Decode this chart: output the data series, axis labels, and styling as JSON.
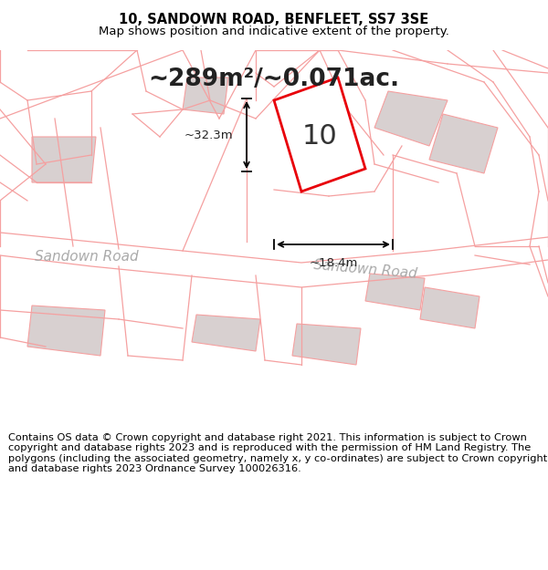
{
  "title": "10, SANDOWN ROAD, BENFLEET, SS7 3SE",
  "subtitle": "Map shows position and indicative extent of the property.",
  "area_text": "~289m²/~0.071ac.",
  "map_bg": "#f9f0f0",
  "map_border_color": "#cccccc",
  "footer_text": "Contains OS data © Crown copyright and database right 2021. This information is subject to Crown copyright and database rights 2023 and is reproduced with the permission of HM Land Registry. The polygons (including the associated geometry, namely x, y co-ordinates) are subject to Crown copyright and database rights 2023 Ordnance Survey 100026316.",
  "title_fontsize": 10.5,
  "subtitle_fontsize": 9.5,
  "area_fontsize": 19,
  "footer_fontsize": 8.2,
  "road_label_1": "Sandown Road",
  "road_label_2": "Sandown Road",
  "property_label": "10",
  "dim_width": "~18.4m",
  "dim_height": "~32.3m",
  "line_color_red": "#e8000a",
  "line_color_light_red": "#f5a0a0",
  "line_color_gray": "#b0b0b0",
  "background_white": "#ffffff",
  "plot_bg": "#f5e8e8"
}
